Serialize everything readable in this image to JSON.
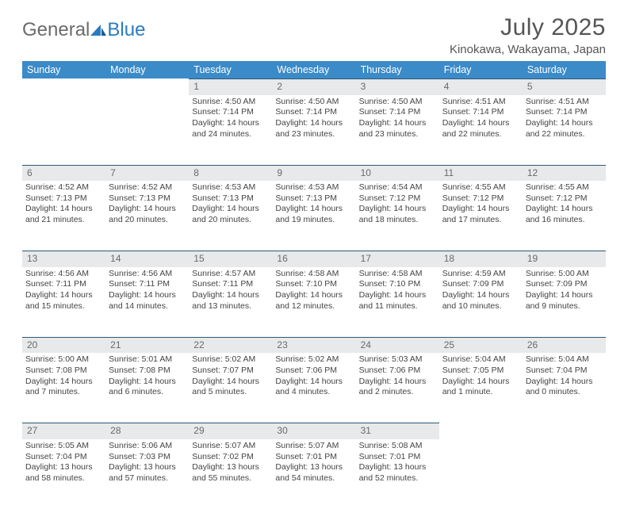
{
  "logo": {
    "word1": "General",
    "word2": "Blue"
  },
  "title": "July 2025",
  "location": "Kinokawa, Wakayama, Japan",
  "colors": {
    "header_bg": "#3b8bc9",
    "header_text": "#ffffff",
    "daynum_bg": "#e8e9ea",
    "daynum_text": "#6a6a6a",
    "rule": "#2b5878",
    "body_text": "#444444",
    "logo_gray": "#6b6b6b",
    "logo_blue": "#2b7bbf"
  },
  "weekday_labels": [
    "Sunday",
    "Monday",
    "Tuesday",
    "Wednesday",
    "Thursday",
    "Friday",
    "Saturday"
  ],
  "weeks": [
    [
      {
        "day": null
      },
      {
        "day": null
      },
      {
        "day": "1",
        "sunrise": "Sunrise: 4:50 AM",
        "sunset": "Sunset: 7:14 PM",
        "daylight": "Daylight: 14 hours and 24 minutes."
      },
      {
        "day": "2",
        "sunrise": "Sunrise: 4:50 AM",
        "sunset": "Sunset: 7:14 PM",
        "daylight": "Daylight: 14 hours and 23 minutes."
      },
      {
        "day": "3",
        "sunrise": "Sunrise: 4:50 AM",
        "sunset": "Sunset: 7:14 PM",
        "daylight": "Daylight: 14 hours and 23 minutes."
      },
      {
        "day": "4",
        "sunrise": "Sunrise: 4:51 AM",
        "sunset": "Sunset: 7:14 PM",
        "daylight": "Daylight: 14 hours and 22 minutes."
      },
      {
        "day": "5",
        "sunrise": "Sunrise: 4:51 AM",
        "sunset": "Sunset: 7:14 PM",
        "daylight": "Daylight: 14 hours and 22 minutes."
      }
    ],
    [
      {
        "day": "6",
        "sunrise": "Sunrise: 4:52 AM",
        "sunset": "Sunset: 7:13 PM",
        "daylight": "Daylight: 14 hours and 21 minutes."
      },
      {
        "day": "7",
        "sunrise": "Sunrise: 4:52 AM",
        "sunset": "Sunset: 7:13 PM",
        "daylight": "Daylight: 14 hours and 20 minutes."
      },
      {
        "day": "8",
        "sunrise": "Sunrise: 4:53 AM",
        "sunset": "Sunset: 7:13 PM",
        "daylight": "Daylight: 14 hours and 20 minutes."
      },
      {
        "day": "9",
        "sunrise": "Sunrise: 4:53 AM",
        "sunset": "Sunset: 7:13 PM",
        "daylight": "Daylight: 14 hours and 19 minutes."
      },
      {
        "day": "10",
        "sunrise": "Sunrise: 4:54 AM",
        "sunset": "Sunset: 7:12 PM",
        "daylight": "Daylight: 14 hours and 18 minutes."
      },
      {
        "day": "11",
        "sunrise": "Sunrise: 4:55 AM",
        "sunset": "Sunset: 7:12 PM",
        "daylight": "Daylight: 14 hours and 17 minutes."
      },
      {
        "day": "12",
        "sunrise": "Sunrise: 4:55 AM",
        "sunset": "Sunset: 7:12 PM",
        "daylight": "Daylight: 14 hours and 16 minutes."
      }
    ],
    [
      {
        "day": "13",
        "sunrise": "Sunrise: 4:56 AM",
        "sunset": "Sunset: 7:11 PM",
        "daylight": "Daylight: 14 hours and 15 minutes."
      },
      {
        "day": "14",
        "sunrise": "Sunrise: 4:56 AM",
        "sunset": "Sunset: 7:11 PM",
        "daylight": "Daylight: 14 hours and 14 minutes."
      },
      {
        "day": "15",
        "sunrise": "Sunrise: 4:57 AM",
        "sunset": "Sunset: 7:11 PM",
        "daylight": "Daylight: 14 hours and 13 minutes."
      },
      {
        "day": "16",
        "sunrise": "Sunrise: 4:58 AM",
        "sunset": "Sunset: 7:10 PM",
        "daylight": "Daylight: 14 hours and 12 minutes."
      },
      {
        "day": "17",
        "sunrise": "Sunrise: 4:58 AM",
        "sunset": "Sunset: 7:10 PM",
        "daylight": "Daylight: 14 hours and 11 minutes."
      },
      {
        "day": "18",
        "sunrise": "Sunrise: 4:59 AM",
        "sunset": "Sunset: 7:09 PM",
        "daylight": "Daylight: 14 hours and 10 minutes."
      },
      {
        "day": "19",
        "sunrise": "Sunrise: 5:00 AM",
        "sunset": "Sunset: 7:09 PM",
        "daylight": "Daylight: 14 hours and 9 minutes."
      }
    ],
    [
      {
        "day": "20",
        "sunrise": "Sunrise: 5:00 AM",
        "sunset": "Sunset: 7:08 PM",
        "daylight": "Daylight: 14 hours and 7 minutes."
      },
      {
        "day": "21",
        "sunrise": "Sunrise: 5:01 AM",
        "sunset": "Sunset: 7:08 PM",
        "daylight": "Daylight: 14 hours and 6 minutes."
      },
      {
        "day": "22",
        "sunrise": "Sunrise: 5:02 AM",
        "sunset": "Sunset: 7:07 PM",
        "daylight": "Daylight: 14 hours and 5 minutes."
      },
      {
        "day": "23",
        "sunrise": "Sunrise: 5:02 AM",
        "sunset": "Sunset: 7:06 PM",
        "daylight": "Daylight: 14 hours and 4 minutes."
      },
      {
        "day": "24",
        "sunrise": "Sunrise: 5:03 AM",
        "sunset": "Sunset: 7:06 PM",
        "daylight": "Daylight: 14 hours and 2 minutes."
      },
      {
        "day": "25",
        "sunrise": "Sunrise: 5:04 AM",
        "sunset": "Sunset: 7:05 PM",
        "daylight": "Daylight: 14 hours and 1 minute."
      },
      {
        "day": "26",
        "sunrise": "Sunrise: 5:04 AM",
        "sunset": "Sunset: 7:04 PM",
        "daylight": "Daylight: 14 hours and 0 minutes."
      }
    ],
    [
      {
        "day": "27",
        "sunrise": "Sunrise: 5:05 AM",
        "sunset": "Sunset: 7:04 PM",
        "daylight": "Daylight: 13 hours and 58 minutes."
      },
      {
        "day": "28",
        "sunrise": "Sunrise: 5:06 AM",
        "sunset": "Sunset: 7:03 PM",
        "daylight": "Daylight: 13 hours and 57 minutes."
      },
      {
        "day": "29",
        "sunrise": "Sunrise: 5:07 AM",
        "sunset": "Sunset: 7:02 PM",
        "daylight": "Daylight: 13 hours and 55 minutes."
      },
      {
        "day": "30",
        "sunrise": "Sunrise: 5:07 AM",
        "sunset": "Sunset: 7:01 PM",
        "daylight": "Daylight: 13 hours and 54 minutes."
      },
      {
        "day": "31",
        "sunrise": "Sunrise: 5:08 AM",
        "sunset": "Sunset: 7:01 PM",
        "daylight": "Daylight: 13 hours and 52 minutes."
      },
      {
        "day": null
      },
      {
        "day": null
      }
    ]
  ]
}
